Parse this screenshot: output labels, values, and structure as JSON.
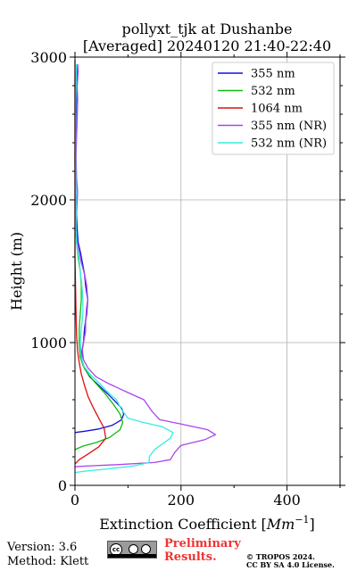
{
  "chart_data": {
    "type": "line",
    "title": [
      "pollyxt_tjk at Dushanbe",
      "[Averaged] 20240120 21:40-22:40"
    ],
    "xlabel": "Extinction Coefficient [Mm⁻¹]",
    "xlabel_main": "Extinction Coefficient [",
    "xlabel_unit": "Mm",
    "xlabel_exp": "−1",
    "xlabel_close": "]",
    "ylabel": "Height (m)",
    "xlim": [
      0,
      500
    ],
    "ylim": [
      0,
      3000
    ],
    "xticks": [
      0,
      200,
      400
    ],
    "yticks": [
      0,
      1000,
      2000,
      3000
    ],
    "grid": true,
    "legend_position": "top-right",
    "series": [
      {
        "name": "355 nm",
        "color": "#1010dd",
        "points": [
          [
            0,
            370
          ],
          [
            20,
            380
          ],
          [
            45,
            395
          ],
          [
            70,
            420
          ],
          [
            88,
            460
          ],
          [
            92,
            500
          ],
          [
            88,
            540
          ],
          [
            78,
            580
          ],
          [
            62,
            640
          ],
          [
            45,
            700
          ],
          [
            28,
            760
          ],
          [
            18,
            820
          ],
          [
            13,
            880
          ],
          [
            13,
            940
          ],
          [
            16,
            1000
          ],
          [
            18,
            1100
          ],
          [
            22,
            1200
          ],
          [
            24,
            1300
          ],
          [
            20,
            1400
          ],
          [
            18,
            1480
          ],
          [
            14,
            1560
          ],
          [
            10,
            1640
          ],
          [
            6,
            1700
          ],
          [
            4,
            1800
          ],
          [
            2,
            2000
          ],
          [
            1,
            2300
          ],
          [
            2,
            2600
          ],
          [
            4,
            2800
          ],
          [
            5,
            2950
          ]
        ]
      },
      {
        "name": "532 nm",
        "color": "#10bb10",
        "points": [
          [
            0,
            250
          ],
          [
            15,
            275
          ],
          [
            40,
            300
          ],
          [
            65,
            335
          ],
          [
            85,
            390
          ],
          [
            90,
            440
          ],
          [
            85,
            500
          ],
          [
            72,
            570
          ],
          [
            55,
            650
          ],
          [
            38,
            720
          ],
          [
            25,
            780
          ],
          [
            15,
            840
          ],
          [
            10,
            900
          ],
          [
            8,
            1000
          ],
          [
            8,
            1100
          ],
          [
            10,
            1200
          ],
          [
            12,
            1300
          ],
          [
            12,
            1400
          ],
          [
            10,
            1500
          ],
          [
            6,
            1600
          ],
          [
            3,
            1700
          ],
          [
            2,
            1800
          ],
          [
            1,
            2000
          ],
          [
            0,
            2300
          ],
          [
            1,
            2600
          ],
          [
            2,
            2800
          ],
          [
            3,
            2950
          ]
        ]
      },
      {
        "name": "1064 nm",
        "color": "#dd1010",
        "points": [
          [
            0,
            150
          ],
          [
            8,
            180
          ],
          [
            25,
            220
          ],
          [
            45,
            270
          ],
          [
            58,
            330
          ],
          [
            55,
            400
          ],
          [
            45,
            470
          ],
          [
            35,
            540
          ],
          [
            25,
            620
          ],
          [
            18,
            700
          ],
          [
            12,
            780
          ],
          [
            8,
            860
          ],
          [
            5,
            940
          ],
          [
            3,
            1050
          ],
          [
            2,
            1200
          ],
          [
            1,
            1400
          ],
          [
            0,
            1600
          ],
          [
            0,
            1800
          ],
          [
            0,
            2000
          ],
          [
            0,
            2200
          ],
          [
            0,
            2500
          ],
          [
            0,
            2800
          ],
          [
            0,
            2980
          ]
        ]
      },
      {
        "name": "355 nm (NR)",
        "color": "#aa44ee",
        "points": [
          [
            0,
            130
          ],
          [
            20,
            135
          ],
          [
            80,
            145
          ],
          [
            150,
            160
          ],
          [
            180,
            180
          ],
          [
            188,
            230
          ],
          [
            200,
            280
          ],
          [
            245,
            320
          ],
          [
            265,
            355
          ],
          [
            250,
            390
          ],
          [
            200,
            430
          ],
          [
            160,
            460
          ],
          [
            145,
            520
          ],
          [
            130,
            600
          ],
          [
            100,
            650
          ],
          [
            65,
            710
          ],
          [
            40,
            760
          ],
          [
            25,
            820
          ],
          [
            16,
            880
          ],
          [
            14,
            950
          ],
          [
            16,
            1000
          ],
          [
            20,
            1080
          ],
          [
            20,
            1150
          ],
          [
            22,
            1250
          ],
          [
            24,
            1300
          ],
          [
            22,
            1400
          ],
          [
            18,
            1480
          ],
          [
            12,
            1560
          ],
          [
            8,
            1640
          ],
          [
            4,
            1700
          ],
          [
            2,
            1800
          ],
          [
            3,
            1900
          ],
          [
            4,
            2000
          ],
          [
            5,
            2050
          ],
          [
            3,
            2150
          ],
          [
            2,
            2300
          ],
          [
            3,
            2450
          ],
          [
            4,
            2550
          ],
          [
            5,
            2700
          ],
          [
            4,
            2800
          ],
          [
            6,
            2900
          ],
          [
            5,
            2950
          ]
        ]
      },
      {
        "name": "532 nm (NR)",
        "color": "#33eedd",
        "points": [
          [
            0,
            90
          ],
          [
            20,
            100
          ],
          [
            60,
            115
          ],
          [
            110,
            135
          ],
          [
            140,
            160
          ],
          [
            140,
            200
          ],
          [
            150,
            250
          ],
          [
            180,
            330
          ],
          [
            185,
            370
          ],
          [
            165,
            410
          ],
          [
            130,
            440
          ],
          [
            100,
            470
          ],
          [
            88,
            530
          ],
          [
            78,
            600
          ],
          [
            60,
            660
          ],
          [
            45,
            720
          ],
          [
            28,
            780
          ],
          [
            16,
            840
          ],
          [
            12,
            900
          ],
          [
            10,
            1000
          ],
          [
            12,
            1100
          ],
          [
            15,
            1200
          ],
          [
            15,
            1300
          ],
          [
            13,
            1400
          ],
          [
            10,
            1500
          ],
          [
            8,
            1580
          ],
          [
            5,
            1650
          ],
          [
            3,
            1700
          ],
          [
            2,
            1800
          ],
          [
            2,
            2000
          ],
          [
            1,
            2300
          ],
          [
            1,
            2600
          ],
          [
            2,
            2800
          ],
          [
            3,
            2950
          ]
        ]
      }
    ]
  },
  "footer": {
    "version": "Version: 3.6",
    "method": "Method: Klett",
    "preliminary_line1": "Preliminary",
    "preliminary_line2": "Results.",
    "copyright_line1": "© TROPOS 2024.",
    "copyright_line2": "CC BY SA 4.0 License.",
    "cc_logo_text": "cc"
  }
}
